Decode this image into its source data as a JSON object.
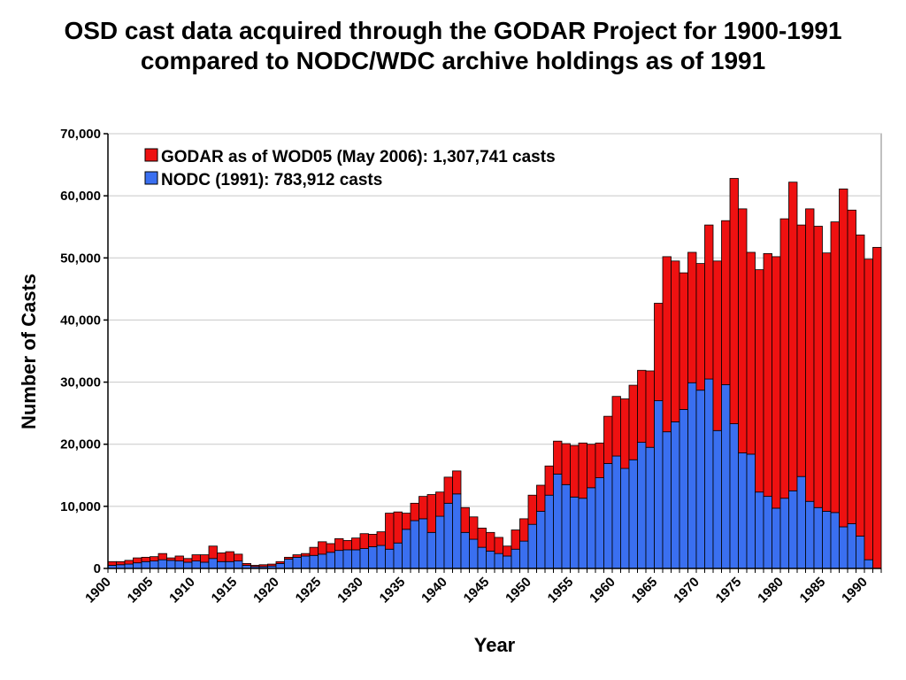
{
  "chart_data": {
    "type": "bar",
    "stacked": true,
    "title_line1": "OSD cast data acquired through the GODAR Project for 1900-1991",
    "title_line2": "compared to NODC/WDC archive holdings as of 1991",
    "xlabel": "Year",
    "ylabel": "Number of Casts",
    "ylim": [
      0,
      70000
    ],
    "yticks": [
      "0",
      "10,000",
      "20,000",
      "30,000",
      "40,000",
      "50,000",
      "60,000",
      "70,000"
    ],
    "xtick_labels": [
      "1900",
      "1905",
      "1910",
      "1915",
      "1920",
      "1925",
      "1930",
      "1935",
      "1940",
      "1945",
      "1950",
      "1955",
      "1960",
      "1965",
      "1970",
      "1975",
      "1980",
      "1985",
      "1990"
    ],
    "grid": true,
    "legend_position": "top-left",
    "years": [
      1900,
      1901,
      1902,
      1903,
      1904,
      1905,
      1906,
      1907,
      1908,
      1909,
      1910,
      1911,
      1912,
      1913,
      1914,
      1915,
      1916,
      1917,
      1918,
      1919,
      1920,
      1921,
      1922,
      1923,
      1924,
      1925,
      1926,
      1927,
      1928,
      1929,
      1930,
      1931,
      1932,
      1933,
      1934,
      1935,
      1936,
      1937,
      1938,
      1939,
      1940,
      1941,
      1942,
      1943,
      1944,
      1945,
      1946,
      1947,
      1948,
      1949,
      1950,
      1951,
      1952,
      1953,
      1954,
      1955,
      1956,
      1957,
      1958,
      1959,
      1960,
      1961,
      1962,
      1963,
      1964,
      1965,
      1966,
      1967,
      1968,
      1969,
      1970,
      1971,
      1972,
      1973,
      1974,
      1975,
      1976,
      1977,
      1978,
      1979,
      1980,
      1981,
      1982,
      1983,
      1984,
      1985,
      1986,
      1987,
      1988,
      1989,
      1990,
      1991
    ],
    "series": [
      {
        "name": "NODC (1991): 783,912 casts",
        "color": "#3a6ff0",
        "values": [
          500,
          600,
          700,
          900,
          1100,
          1200,
          1400,
          1300,
          1200,
          1000,
          1200,
          1000,
          1600,
          1100,
          1100,
          1200,
          500,
          300,
          300,
          400,
          800,
          1500,
          1800,
          2000,
          2100,
          2300,
          2600,
          2900,
          3000,
          3000,
          3200,
          3500,
          3700,
          3100,
          4100,
          6300,
          7700,
          8000,
          5800,
          8400,
          10500,
          12000,
          5800,
          4700,
          3400,
          2800,
          2400,
          2000,
          3100,
          4400,
          7100,
          9200,
          11800,
          15200,
          13500,
          11500,
          11300,
          13000,
          14600,
          16900,
          18100,
          16100,
          17500,
          20300,
          19500,
          27000,
          22000,
          23600,
          25600,
          29900,
          28700,
          30500,
          22200,
          29600,
          23300,
          18600,
          18400,
          12300,
          11600,
          9700,
          11300,
          12500,
          14800,
          10800,
          9800,
          9200,
          9000,
          6700,
          7200,
          5200,
          1400,
          0
        ]
      },
      {
        "name": "GODAR as of WOD05 (May 2006): 1,307,741 casts",
        "color": "#ee1111",
        "values": [
          600,
          500,
          600,
          800,
          700,
          700,
          1000,
          400,
          800,
          600,
          1000,
          1200,
          2000,
          1400,
          1600,
          1100,
          300,
          200,
          300,
          300,
          300,
          300,
          400,
          400,
          1300,
          2000,
          1400,
          1900,
          1500,
          1900,
          2400,
          2000,
          2200,
          5800,
          5000,
          2600,
          2800,
          3600,
          6100,
          3900,
          4200,
          3700,
          4000,
          3600,
          3100,
          3000,
          2600,
          1600,
          3100,
          3600,
          4700,
          4200,
          4700,
          5300,
          6600,
          8300,
          8900,
          7000,
          5600,
          7600,
          9600,
          11200,
          12000,
          11600,
          12300,
          15700,
          28200,
          25900,
          22000,
          21000,
          20400,
          24800,
          27300,
          26400,
          39500,
          39300,
          32500,
          35800,
          39100,
          40500,
          45000,
          49700,
          40500,
          47100,
          45300,
          41600,
          46800,
          54400,
          50500,
          48500,
          48400,
          51700
        ]
      }
    ]
  }
}
